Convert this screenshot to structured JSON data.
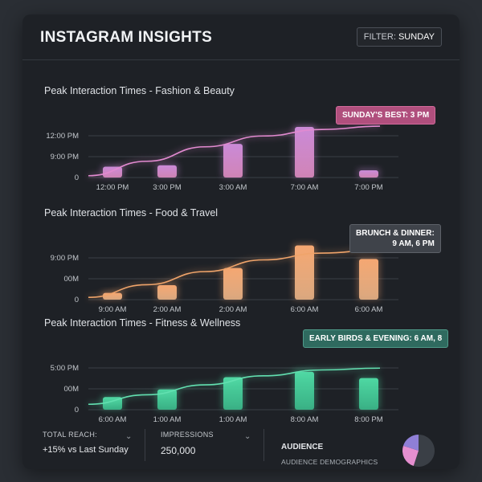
{
  "header": {
    "title": "INSTAGRAM INSIGHTS",
    "filter_label": "FILTER:",
    "filter_value": "SUNDAY"
  },
  "chart_data": [
    {
      "type": "bar",
      "title": "Peak Interaction Times - Fashion & Beauty",
      "categories": [
        "12:00 PM",
        "3:00 PM",
        "3:00 AM",
        "7:00 AM",
        "7:00 PM"
      ],
      "y_ticks": [
        "0",
        "9:00 PM",
        "12:00 PM"
      ],
      "values": [
        0.3,
        0.34,
        0.93,
        1.4,
        0.2
      ],
      "ylim": [
        0,
        2
      ],
      "trend": [
        0.05,
        0.45,
        0.85,
        1.15,
        1.33,
        1.42
      ],
      "colors": {
        "bar_top": "#c98ad8",
        "bar_bottom": "#e58fc6",
        "line": "#e28ad0"
      },
      "annotation": "SUNDAY'S BEST: 3 PM"
    },
    {
      "type": "bar",
      "title": "Peak Interaction Times - Food & Travel",
      "categories": [
        "9:00 AM",
        "2:00 AM",
        "2:00 AM",
        "6:00 AM",
        "6:00 AM"
      ],
      "y_ticks": [
        "0",
        "00M",
        "9:00 PM"
      ],
      "values": [
        0.15,
        0.32,
        0.7,
        1.2,
        0.9
      ],
      "ylim": [
        0,
        1.6
      ],
      "trend": [
        0.05,
        0.33,
        0.62,
        0.88,
        1.03,
        1.1
      ],
      "colors": {
        "bar_top": "#f5a772",
        "bar_bottom": "#f0b88a",
        "line": "#f0a46a"
      },
      "annotation_lines": [
        "BRUNCH & DINNER:",
        "9 AM, 6 PM"
      ]
    },
    {
      "type": "bar",
      "title": "Peak Interaction Times - Fitness & Wellness",
      "categories": [
        "6:00 AM",
        "1:00 AM",
        "1:00 AM",
        "8:00 AM",
        "8:00 PM"
      ],
      "y_ticks": [
        "0",
        "00M",
        "5:00 PM"
      ],
      "values": [
        0.28,
        0.45,
        0.72,
        0.84,
        0.7
      ],
      "ylim": [
        0,
        1.6
      ],
      "trend": [
        0.12,
        0.33,
        0.55,
        0.75,
        0.88,
        0.92
      ],
      "colors": {
        "bar_top": "#4fd8a3",
        "bar_bottom": "#3cc08f",
        "line": "#62e0b0"
      },
      "annotation": "EARLY BIRDS & EVENING: 6 AM, 8"
    }
  ],
  "footer": {
    "reach_label": "TOTAL REACH:",
    "reach_value": "+15% vs Last Sunday",
    "impressions_label": "IMPRESSIONS",
    "impressions_value": "250,000",
    "audience_title": "AUDIENCE",
    "audience_sub": "AUDIENCE DEMOGRAPHICS",
    "pie": [
      0.55,
      0.25,
      0.2
    ],
    "pie_colors": [
      "#3a3f46",
      "#e58fd0",
      "#8f7fd6"
    ]
  }
}
